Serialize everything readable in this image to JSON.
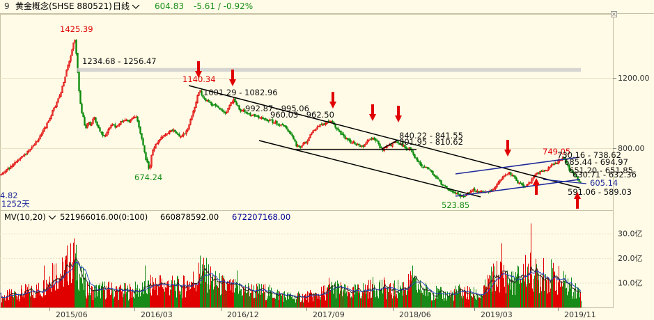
{
  "header": {
    "index": "9",
    "title": "黄金概念(SHSE 880521)",
    "period": "日线",
    "price": "604.83",
    "change": "-5.61 / -0.92%"
  },
  "volume_header": {
    "title": "MV(10,20)",
    "value1": "521966016.00(0:100)",
    "value2": "660878592.00",
    "value3": "672207168.00"
  },
  "chart_data": {
    "type": "candlestick",
    "price_axis": {
      "ticks": [
        800,
        1200
      ],
      "tick_labels": [
        "800.00",
        "1200.00"
      ]
    },
    "volume_axis": {
      "ticks": [
        10,
        20,
        30
      ],
      "tick_labels": [
        "10.0亿",
        "20.0亿",
        "30.0亿"
      ]
    },
    "x_ticks": [
      "2015/06",
      "2016/03",
      "2016/12",
      "2017/09",
      "2018/06",
      "2019/03",
      "2019/11"
    ],
    "price_path": [
      [
        0,
        650
      ],
      [
        8,
        672
      ],
      [
        18,
        705
      ],
      [
        30,
        745
      ],
      [
        40,
        785
      ],
      [
        48,
        815
      ],
      [
        55,
        850
      ],
      [
        60,
        890
      ],
      [
        65,
        920
      ],
      [
        70,
        960
      ],
      [
        75,
        1010
      ],
      [
        80,
        1050
      ],
      [
        86,
        1110
      ],
      [
        90,
        1160
      ],
      [
        95,
        1240
      ],
      [
        100,
        1310
      ],
      [
        104,
        1380
      ],
      [
        106,
        1425
      ],
      [
        108,
        1390
      ],
      [
        110,
        1280
      ],
      [
        112,
        1180
      ],
      [
        114,
        1080
      ],
      [
        117,
        1000
      ],
      [
        120,
        960
      ],
      [
        122,
        900
      ],
      [
        126,
        960
      ],
      [
        130,
        920
      ],
      [
        134,
        985
      ],
      [
        138,
        935
      ],
      [
        142,
        900
      ],
      [
        146,
        880
      ],
      [
        150,
        870
      ],
      [
        155,
        905
      ],
      [
        160,
        935
      ],
      [
        165,
        925
      ],
      [
        170,
        935
      ],
      [
        175,
        955
      ],
      [
        180,
        965
      ],
      [
        185,
        955
      ],
      [
        190,
        980
      ],
      [
        196,
        970
      ],
      [
        200,
        905
      ],
      [
        204,
        840
      ],
      [
        208,
        755
      ],
      [
        212,
        700
      ],
      [
        214,
        674
      ],
      [
        216,
        740
      ],
      [
        220,
        800
      ],
      [
        226,
        840
      ],
      [
        232,
        860
      ],
      [
        240,
        880
      ],
      [
        248,
        905
      ],
      [
        255,
        880
      ],
      [
        260,
        865
      ],
      [
        265,
        885
      ],
      [
        270,
        920
      ],
      [
        275,
        985
      ],
      [
        280,
        1040
      ],
      [
        284,
        1110
      ],
      [
        286,
        1140
      ],
      [
        290,
        1090
      ],
      [
        295,
        1075
      ],
      [
        300,
        1060
      ],
      [
        310,
        1040
      ],
      [
        318,
        1010
      ],
      [
        324,
        1000
      ],
      [
        330,
        1060
      ],
      [
        335,
        1075
      ],
      [
        340,
        1040
      ],
      [
        345,
        1015
      ],
      [
        350,
        1010
      ],
      [
        355,
        1000
      ],
      [
        360,
        990
      ],
      [
        365,
        985
      ],
      [
        370,
        978
      ],
      [
        375,
        972
      ],
      [
        380,
        965
      ],
      [
        385,
        960
      ],
      [
        390,
        952
      ],
      [
        395,
        945
      ],
      [
        400,
        938
      ],
      [
        405,
        935
      ],
      [
        410,
        915
      ],
      [
        415,
        890
      ],
      [
        420,
        860
      ],
      [
        425,
        815
      ],
      [
        430,
        810
      ],
      [
        435,
        822
      ],
      [
        440,
        840
      ],
      [
        445,
        875
      ],
      [
        450,
        900
      ],
      [
        455,
        915
      ],
      [
        460,
        935
      ],
      [
        465,
        940
      ],
      [
        470,
        950
      ],
      [
        475,
        955
      ],
      [
        480,
        930
      ],
      [
        485,
        900
      ],
      [
        490,
        880
      ],
      [
        495,
        860
      ],
      [
        500,
        845
      ],
      [
        505,
        835
      ],
      [
        510,
        825
      ],
      [
        515,
        815
      ],
      [
        520,
        810
      ],
      [
        525,
        830
      ],
      [
        530,
        850
      ],
      [
        535,
        860
      ],
      [
        540,
        845
      ],
      [
        545,
        800
      ],
      [
        550,
        790
      ],
      [
        555,
        808
      ],
      [
        560,
        815
      ],
      [
        565,
        830
      ],
      [
        570,
        835
      ],
      [
        575,
        822
      ],
      [
        580,
        808
      ],
      [
        585,
        800
      ],
      [
        590,
        790
      ],
      [
        595,
        745
      ],
      [
        600,
        720
      ],
      [
        605,
        700
      ],
      [
        610,
        690
      ],
      [
        615,
        680
      ],
      [
        620,
        660
      ],
      [
        625,
        640
      ],
      [
        630,
        615
      ],
      [
        635,
        590
      ],
      [
        640,
        575
      ],
      [
        645,
        560
      ],
      [
        650,
        550
      ],
      [
        655,
        540
      ],
      [
        660,
        528
      ],
      [
        664,
        524
      ],
      [
        668,
        532
      ],
      [
        672,
        545
      ],
      [
        676,
        555
      ],
      [
        680,
        560
      ],
      [
        685,
        555
      ],
      [
        690,
        550
      ],
      [
        695,
        548
      ],
      [
        700,
        547
      ],
      [
        705,
        555
      ],
      [
        710,
        575
      ],
      [
        715,
        605
      ],
      [
        720,
        632
      ],
      [
        725,
        652
      ],
      [
        730,
        662
      ],
      [
        735,
        645
      ],
      [
        740,
        620
      ],
      [
        745,
        600
      ],
      [
        750,
        588
      ],
      [
        755,
        585
      ],
      [
        760,
        605
      ],
      [
        765,
        632
      ],
      [
        770,
        652
      ],
      [
        775,
        665
      ],
      [
        780,
        670
      ],
      [
        785,
        680
      ],
      [
        790,
        700
      ],
      [
        795,
        712
      ],
      [
        800,
        722
      ],
      [
        804,
        738
      ],
      [
        808,
        749
      ],
      [
        812,
        720
      ],
      [
        816,
        685
      ],
      [
        820,
        665
      ],
      [
        826,
        640
      ],
      [
        832,
        610
      ]
    ],
    "volume_profile": [
      [
        0,
        5
      ],
      [
        40,
        8
      ],
      [
        60,
        9
      ],
      [
        75,
        18
      ],
      [
        90,
        17
      ],
      [
        100,
        24
      ],
      [
        108,
        22
      ],
      [
        120,
        12
      ],
      [
        130,
        8
      ],
      [
        150,
        9
      ],
      [
        180,
        8
      ],
      [
        205,
        9
      ],
      [
        225,
        12
      ],
      [
        260,
        10
      ],
      [
        280,
        14
      ],
      [
        290,
        18
      ],
      [
        310,
        12
      ],
      [
        340,
        9
      ],
      [
        380,
        8
      ],
      [
        420,
        5
      ],
      [
        455,
        6
      ],
      [
        480,
        10
      ],
      [
        500,
        7
      ],
      [
        525,
        9
      ],
      [
        545,
        11
      ],
      [
        560,
        8
      ],
      [
        590,
        12
      ],
      [
        605,
        9
      ],
      [
        640,
        6
      ],
      [
        660,
        8
      ],
      [
        690,
        6
      ],
      [
        705,
        14
      ],
      [
        720,
        17
      ],
      [
        735,
        12
      ],
      [
        760,
        20
      ],
      [
        772,
        15
      ],
      [
        790,
        16
      ],
      [
        810,
        12
      ],
      [
        835,
        7
      ]
    ],
    "volume_spikes": [
      [
        63,
        17
      ],
      [
        75,
        18
      ],
      [
        101,
        26
      ],
      [
        106,
        28
      ],
      [
        208,
        17
      ],
      [
        287,
        21
      ],
      [
        340,
        15
      ],
      [
        472,
        12
      ],
      [
        592,
        17
      ],
      [
        720,
        26
      ],
      [
        762,
        34
      ],
      [
        780,
        20
      ],
      [
        793,
        16
      ]
    ],
    "price_labels": [
      {
        "text": "1425.39",
        "color": "red"
      },
      {
        "text": "1234.68 - 1256.47",
        "color": "dark"
      },
      {
        "text": "1140.34",
        "color": "red"
      },
      {
        "text": "1001.29 - 1082.96",
        "color": "dark"
      },
      {
        "text": "992.87 - 995.06",
        "color": "dark"
      },
      {
        "text": "960.03 - 962.50",
        "color": "dark"
      },
      {
        "text": "840.22 - 841.55",
        "color": "dark"
      },
      {
        "text": "801.95 - 810.62",
        "color": "dark"
      },
      {
        "text": "749.05",
        "color": "red"
      },
      {
        "text": "730.16 - 738.62",
        "color": "dark"
      },
      {
        "text": "685.44 - 694.97",
        "color": "dark"
      },
      {
        "text": "651.20 - 651.85",
        "color": "dark"
      },
      {
        "text": "630.71 - 632.36",
        "color": "dark"
      },
      {
        "text": "605.14",
        "color": "blue"
      },
      {
        "text": "591.06 - 589.03",
        "color": "dark"
      },
      {
        "text": "674.24",
        "color": "green"
      },
      {
        "text": "523.85",
        "color": "green"
      },
      {
        "text": "4.82",
        "color": "blue"
      },
      {
        "text": "1252天",
        "color": "blue"
      }
    ]
  }
}
